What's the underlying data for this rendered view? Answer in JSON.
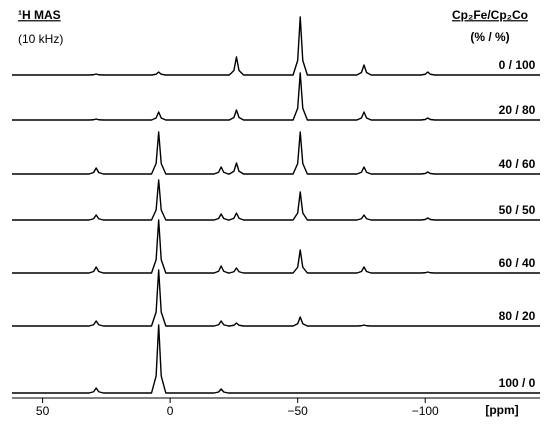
{
  "chart_data": {
    "type": "stacked-spectra",
    "title": "¹H MAS",
    "subtitle": "(10 kHz)",
    "legend_title": "Cp₂Fe/Cp₂Co",
    "legend_subtitle": "(% / %)",
    "x_label": "[ppm]",
    "xlim": [
      62,
      -145
    ],
    "xticks": [
      50,
      0,
      {
        "value": -50,
        "label": "−50"
      },
      {
        "value": -100,
        "label": "−100"
      }
    ],
    "x": [
      62,
      31.8,
      30,
      29,
      28,
      26.2,
      7.3,
      5.5,
      4.5,
      3.5,
      1.7,
      -17.2,
      -19,
      -20,
      -21,
      -22.8,
      -23.2,
      -25,
      -26,
      -27,
      -28.8,
      -48.2,
      -50,
      -51,
      -52,
      -53.8,
      -73.2,
      -75,
      -76,
      -77,
      -78.8,
      -98.2,
      -100,
      -101,
      -102,
      -103.8,
      -145
    ],
    "series": [
      {
        "name": "0 / 100",
        "color": "#000000",
        "values": [
          0,
          0,
          0.25,
          1,
          0.25,
          0,
          0,
          0.75,
          3,
          0.75,
          0,
          0,
          0,
          0,
          0,
          0,
          0,
          4.5,
          18,
          4.5,
          0,
          0,
          14.5,
          58,
          14.5,
          0,
          0,
          2.5,
          10,
          2.5,
          0,
          0,
          0.75,
          3,
          0.75,
          0,
          0
        ]
      },
      {
        "name": "20 / 80",
        "color": "#000000",
        "values": [
          0,
          0,
          0.25,
          1,
          0.25,
          0,
          0,
          2,
          8,
          2,
          0,
          0,
          0,
          0,
          0,
          0,
          0,
          2.5,
          10,
          2.5,
          0,
          0,
          11.75,
          47,
          11.75,
          0,
          0,
          2,
          8,
          2,
          0,
          0,
          0.5,
          2,
          0.5,
          0,
          0
        ]
      },
      {
        "name": "40 / 60",
        "color": "#000000",
        "values": [
          0,
          0,
          1.5,
          6,
          1.5,
          0,
          0,
          10.5,
          42,
          10.5,
          0,
          0,
          1.75,
          7,
          1.75,
          0,
          0,
          2.75,
          11,
          2.75,
          0,
          0,
          10.5,
          42,
          10.5,
          0,
          0,
          1.75,
          7,
          1.75,
          0,
          0,
          0.5,
          2,
          0.5,
          0,
          0
        ]
      },
      {
        "name": "50 / 50",
        "color": "#000000",
        "values": [
          0,
          0,
          1.25,
          5,
          1.25,
          0,
          0,
          10,
          40,
          10,
          0,
          0,
          1.5,
          6,
          1.5,
          0,
          0,
          1.75,
          7,
          1.75,
          0,
          0,
          7,
          28,
          7,
          0,
          0,
          1.25,
          5,
          1.25,
          0,
          0,
          0.5,
          2,
          0.5,
          0,
          0
        ]
      },
      {
        "name": "60 / 40",
        "color": "#000000",
        "values": [
          0,
          0,
          1.5,
          6,
          1.5,
          0,
          0,
          13.25,
          53,
          13.25,
          0,
          0,
          1.75,
          7,
          1.75,
          0,
          0,
          1.25,
          5,
          1.25,
          0,
          0,
          5.75,
          23,
          5.75,
          0,
          0,
          1.5,
          6,
          1.5,
          0,
          0,
          0.25,
          1,
          0.25,
          0,
          0
        ]
      },
      {
        "name": "80 / 20",
        "color": "#000000",
        "values": [
          0,
          0,
          1.25,
          5,
          1.25,
          0,
          0,
          14,
          56,
          14,
          0,
          0,
          1.25,
          5,
          1.25,
          0,
          0,
          0.75,
          3,
          0.75,
          0,
          0,
          2.25,
          9,
          2.25,
          0,
          0,
          0.25,
          1,
          0.25,
          0,
          0,
          0,
          0,
          0,
          0,
          0
        ]
      },
      {
        "name": "100 / 0",
        "color": "#000000",
        "values": [
          0,
          0,
          1.25,
          5,
          1.25,
          0,
          0,
          17,
          68,
          17,
          0,
          0,
          1,
          4,
          1,
          0,
          0,
          0,
          0,
          0,
          0,
          0,
          0,
          0,
          0,
          0,
          0,
          0,
          0,
          0,
          0,
          0,
          0,
          0,
          0,
          0,
          0
        ]
      }
    ]
  }
}
